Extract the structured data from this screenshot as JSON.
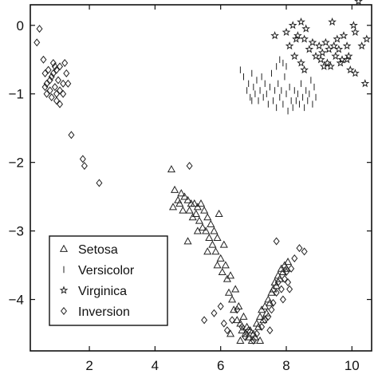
{
  "chart_data": {
    "type": "scatter",
    "title": "",
    "xlabel": "",
    "ylabel": "",
    "xlim": [
      0.2,
      10.6
    ],
    "ylim": [
      -4.75,
      0.3
    ],
    "xticks": [
      2,
      4,
      6,
      8,
      10
    ],
    "yticks": [
      0,
      -1,
      -2,
      -3,
      -4
    ],
    "grid": false,
    "legend_position": "bottom-left",
    "series": [
      {
        "name": "Setosa",
        "marker": "triangle",
        "points": [
          [
            4.5,
            -2.1
          ],
          [
            4.6,
            -2.4
          ],
          [
            4.55,
            -2.65
          ],
          [
            4.7,
            -2.55
          ],
          [
            4.75,
            -2.6
          ],
          [
            4.8,
            -2.45
          ],
          [
            4.85,
            -2.7
          ],
          [
            4.9,
            -2.5
          ],
          [
            5.0,
            -2.55
          ],
          [
            5.05,
            -2.7
          ],
          [
            5.1,
            -2.6
          ],
          [
            5.15,
            -2.8
          ],
          [
            5.2,
            -2.6
          ],
          [
            5.25,
            -2.75
          ],
          [
            5.3,
            -2.65
          ],
          [
            5.35,
            -2.85
          ],
          [
            5.4,
            -2.6
          ],
          [
            5.45,
            -2.95
          ],
          [
            5.5,
            -2.7
          ],
          [
            5.55,
            -3.0
          ],
          [
            5.6,
            -2.8
          ],
          [
            5.65,
            -3.1
          ],
          [
            5.7,
            -2.9
          ],
          [
            5.75,
            -3.2
          ],
          [
            5.8,
            -3.0
          ],
          [
            5.85,
            -3.3
          ],
          [
            5.9,
            -3.1
          ],
          [
            5.95,
            -2.75
          ],
          [
            6.0,
            -3.4
          ],
          [
            6.05,
            -3.6
          ],
          [
            6.1,
            -3.2
          ],
          [
            6.15,
            -3.5
          ],
          [
            6.2,
            -3.7
          ],
          [
            6.25,
            -3.9
          ],
          [
            6.3,
            -3.65
          ],
          [
            6.35,
            -4.0
          ],
          [
            6.4,
            -4.15
          ],
          [
            6.45,
            -3.85
          ],
          [
            6.5,
            -4.3
          ],
          [
            6.55,
            -4.1
          ],
          [
            6.6,
            -4.35
          ],
          [
            6.65,
            -4.45
          ],
          [
            6.7,
            -4.25
          ],
          [
            6.75,
            -4.5
          ],
          [
            6.8,
            -4.4
          ],
          [
            6.85,
            -4.55
          ],
          [
            6.9,
            -4.45
          ],
          [
            6.95,
            -4.6
          ],
          [
            7.0,
            -4.5
          ],
          [
            7.05,
            -4.55
          ],
          [
            7.1,
            -4.35
          ],
          [
            7.15,
            -4.4
          ],
          [
            7.2,
            -4.25
          ],
          [
            7.25,
            -4.15
          ],
          [
            7.3,
            -4.3
          ],
          [
            7.35,
            -4.1
          ],
          [
            7.4,
            -4.2
          ],
          [
            7.45,
            -4.0
          ],
          [
            7.5,
            -4.05
          ],
          [
            7.55,
            -3.9
          ],
          [
            7.6,
            -3.85
          ],
          [
            7.65,
            -3.75
          ],
          [
            7.7,
            -3.8
          ],
          [
            7.75,
            -3.65
          ],
          [
            7.8,
            -3.7
          ],
          [
            7.85,
            -3.55
          ],
          [
            7.9,
            -3.6
          ],
          [
            7.95,
            -3.5
          ],
          [
            8.0,
            -3.55
          ],
          [
            8.05,
            -3.45
          ],
          [
            5.0,
            -3.15
          ],
          [
            5.3,
            -3.0
          ],
          [
            5.6,
            -3.3
          ],
          [
            5.9,
            -3.5
          ],
          [
            6.3,
            -4.5
          ],
          [
            6.6,
            -4.6
          ],
          [
            7.2,
            -4.6
          ]
        ]
      },
      {
        "name": "Versicolor",
        "marker": "dash",
        "points": [
          [
            6.6,
            -0.65
          ],
          [
            6.7,
            -0.75
          ],
          [
            6.8,
            -0.95
          ],
          [
            6.85,
            -0.85
          ],
          [
            6.9,
            -1.05
          ],
          [
            6.95,
            -0.7
          ],
          [
            7.0,
            -0.9
          ],
          [
            7.05,
            -1.0
          ],
          [
            7.1,
            -0.8
          ],
          [
            7.15,
            -1.1
          ],
          [
            7.2,
            -0.95
          ],
          [
            7.25,
            -0.75
          ],
          [
            7.3,
            -1.05
          ],
          [
            7.35,
            -0.85
          ],
          [
            7.4,
            -1.0
          ],
          [
            7.45,
            -1.15
          ],
          [
            7.5,
            -0.9
          ],
          [
            7.55,
            -0.7
          ],
          [
            7.6,
            -1.1
          ],
          [
            7.65,
            -0.95
          ],
          [
            7.7,
            -1.2
          ],
          [
            7.75,
            -0.85
          ],
          [
            7.8,
            -1.05
          ],
          [
            7.85,
            -0.95
          ],
          [
            7.9,
            -1.15
          ],
          [
            7.95,
            -0.75
          ],
          [
            8.0,
            -1.0
          ],
          [
            8.05,
            -1.25
          ],
          [
            8.1,
            -0.9
          ],
          [
            8.15,
            -1.1
          ],
          [
            8.2,
            -1.2
          ],
          [
            8.25,
            -0.95
          ],
          [
            8.3,
            -1.1
          ],
          [
            8.35,
            -1.0
          ],
          [
            8.4,
            -1.15
          ],
          [
            8.45,
            -0.85
          ],
          [
            8.5,
            -1.05
          ],
          [
            8.55,
            -1.2
          ],
          [
            8.6,
            -0.95
          ],
          [
            8.65,
            -1.1
          ],
          [
            8.7,
            -1.0
          ],
          [
            8.75,
            -0.8
          ],
          [
            8.8,
            -1.15
          ],
          [
            8.85,
            -0.9
          ],
          [
            8.9,
            -1.05
          ],
          [
            7.9,
            -0.55
          ],
          [
            7.8,
            -0.5
          ],
          [
            8.0,
            -0.6
          ],
          [
            7.7,
            -0.6
          ],
          [
            6.95,
            -1.1
          ]
        ]
      },
      {
        "name": "Virginica",
        "marker": "star",
        "points": [
          [
            7.65,
            -0.15
          ],
          [
            8.0,
            -0.1
          ],
          [
            8.2,
            0.0
          ],
          [
            8.35,
            -0.15
          ],
          [
            8.45,
            0.05
          ],
          [
            8.55,
            -0.2
          ],
          [
            8.6,
            -0.05
          ],
          [
            8.7,
            -0.35
          ],
          [
            8.8,
            -0.25
          ],
          [
            8.9,
            -0.45
          ],
          [
            9.0,
            -0.3
          ],
          [
            9.05,
            -0.5
          ],
          [
            9.1,
            -0.4
          ],
          [
            9.2,
            -0.25
          ],
          [
            9.25,
            -0.55
          ],
          [
            9.3,
            -0.35
          ],
          [
            9.35,
            -0.6
          ],
          [
            9.45,
            -0.3
          ],
          [
            9.5,
            -0.45
          ],
          [
            9.55,
            -0.2
          ],
          [
            9.6,
            -0.35
          ],
          [
            9.7,
            -0.5
          ],
          [
            9.75,
            -0.15
          ],
          [
            9.85,
            -0.3
          ],
          [
            9.9,
            -0.45
          ],
          [
            10.05,
            0.0
          ],
          [
            10.1,
            -0.1
          ],
          [
            10.2,
            0.35
          ],
          [
            10.3,
            -0.3
          ],
          [
            10.4,
            -0.85
          ],
          [
            10.45,
            -0.2
          ],
          [
            10.1,
            -0.7
          ],
          [
            9.4,
            0.05
          ],
          [
            8.25,
            -0.45
          ],
          [
            8.45,
            -0.55
          ],
          [
            8.1,
            -0.3
          ],
          [
            8.3,
            -0.2
          ],
          [
            8.55,
            -0.65
          ],
          [
            9.15,
            -0.6
          ],
          [
            9.65,
            -0.55
          ],
          [
            9.85,
            -0.5
          ],
          [
            9.95,
            -0.65
          ]
        ]
      },
      {
        "name": "Inversion",
        "marker": "diamond",
        "points": [
          [
            0.48,
            -0.05
          ],
          [
            0.4,
            -0.25
          ],
          [
            0.6,
            -0.5
          ],
          [
            0.65,
            -0.7
          ],
          [
            0.7,
            -0.85
          ],
          [
            0.75,
            -0.65
          ],
          [
            0.8,
            -0.95
          ],
          [
            0.85,
            -0.75
          ],
          [
            0.9,
            -0.55
          ],
          [
            0.95,
            -0.9
          ],
          [
            1.0,
            -1.0
          ],
          [
            1.05,
            -0.8
          ],
          [
            1.1,
            -0.6
          ],
          [
            0.7,
            -1.0
          ],
          [
            0.8,
            -0.8
          ],
          [
            0.9,
            -0.7
          ],
          [
            1.0,
            -0.65
          ],
          [
            1.1,
            -0.95
          ],
          [
            1.2,
            -0.85
          ],
          [
            1.3,
            -0.7
          ],
          [
            1.35,
            -0.85
          ],
          [
            1.0,
            -1.1
          ],
          [
            1.1,
            -1.15
          ],
          [
            0.85,
            -1.05
          ],
          [
            0.65,
            -0.9
          ],
          [
            0.95,
            -0.6
          ],
          [
            1.25,
            -0.55
          ],
          [
            1.2,
            -1.0
          ],
          [
            1.45,
            -1.6
          ],
          [
            1.8,
            -1.95
          ],
          [
            1.85,
            -2.05
          ],
          [
            2.3,
            -2.3
          ],
          [
            5.05,
            -2.05
          ],
          [
            5.5,
            -4.3
          ],
          [
            5.8,
            -4.2
          ],
          [
            6.0,
            -4.1
          ],
          [
            6.1,
            -4.35
          ],
          [
            6.2,
            -4.45
          ],
          [
            6.35,
            -4.3
          ],
          [
            6.5,
            -4.15
          ],
          [
            6.65,
            -4.4
          ],
          [
            6.75,
            -4.55
          ],
          [
            6.85,
            -4.45
          ],
          [
            7.0,
            -4.6
          ],
          [
            7.1,
            -4.5
          ],
          [
            7.25,
            -4.4
          ],
          [
            7.35,
            -4.3
          ],
          [
            7.45,
            -4.25
          ],
          [
            7.55,
            -4.15
          ],
          [
            7.6,
            -4.05
          ],
          [
            7.7,
            -3.9
          ],
          [
            7.75,
            -3.75
          ],
          [
            7.85,
            -3.85
          ],
          [
            7.95,
            -3.7
          ],
          [
            8.0,
            -3.6
          ],
          [
            8.05,
            -3.75
          ],
          [
            8.15,
            -3.55
          ],
          [
            8.25,
            -3.4
          ],
          [
            8.4,
            -3.25
          ],
          [
            8.55,
            -3.3
          ],
          [
            7.7,
            -3.15
          ],
          [
            8.1,
            -3.85
          ],
          [
            7.9,
            -4.0
          ],
          [
            7.5,
            -4.45
          ]
        ]
      }
    ]
  }
}
